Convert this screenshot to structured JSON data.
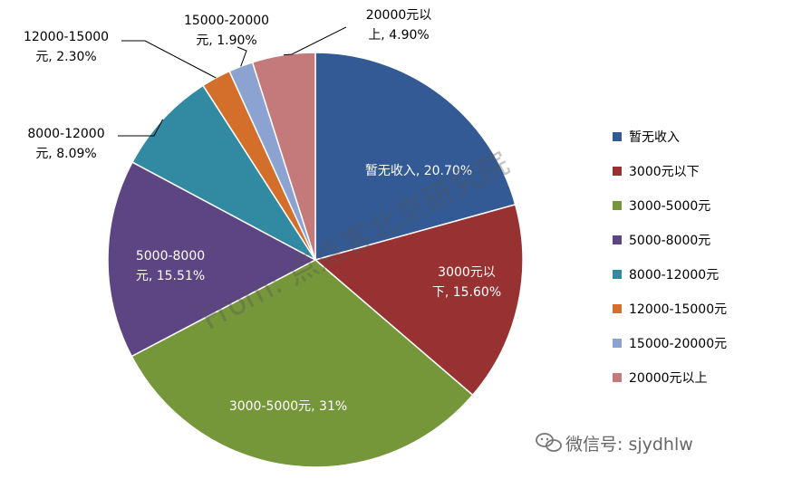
{
  "chart_data": {
    "type": "pie",
    "categories": [
      "暂无收入",
      "3000元以下",
      "3000-5000元",
      "5000-8000元",
      "8000-12000元",
      "12000-15000元",
      "15000-20000元",
      "20000元以上"
    ],
    "values": [
      20.7,
      15.6,
      31,
      15.51,
      8.09,
      2.3,
      1.9,
      4.9
    ],
    "colors": [
      "#335a94",
      "#983232",
      "#76963a",
      "#5d4483",
      "#318aa1",
      "#d36f2a",
      "#8ca2d0",
      "#c47a7a"
    ],
    "data_labels": [
      {
        "line1": "暂无收入, 20.70%",
        "line2": ""
      },
      {
        "line1": "3000元以",
        "line2": "下, 15.60%"
      },
      {
        "line1": "3000-5000元, 31%",
        "line2": ""
      },
      {
        "line1": "5000-8000",
        "line2": "元, 15.51%"
      },
      {
        "line1": "8000-12000",
        "line2": "元, 8.09%"
      },
      {
        "line1": "12000-15000",
        "line2": "元, 2.30%"
      },
      {
        "line1": "15000-20000",
        "line2": "元, 1.90%"
      },
      {
        "line1": "20000元以",
        "line2": "上, 4.90%"
      }
    ],
    "legend_position": "right"
  },
  "watermark": "From: 点点客北京研究院",
  "wechat_label": "微信号: sjydhlw"
}
